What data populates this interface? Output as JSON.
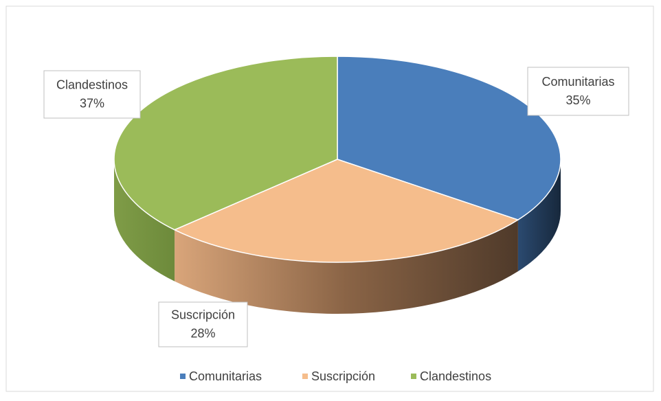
{
  "chart_data": {
    "type": "pie",
    "style": "3d",
    "categories": [
      "Comunitarias",
      "Suscripción",
      "Clandestinos"
    ],
    "values": [
      35,
      28,
      37
    ],
    "value_labels": [
      "35%",
      "28%",
      "37%"
    ],
    "colors": [
      "#4a7ebb",
      "#f5bd8c",
      "#9bbb59"
    ],
    "legend": "bottom"
  }
}
